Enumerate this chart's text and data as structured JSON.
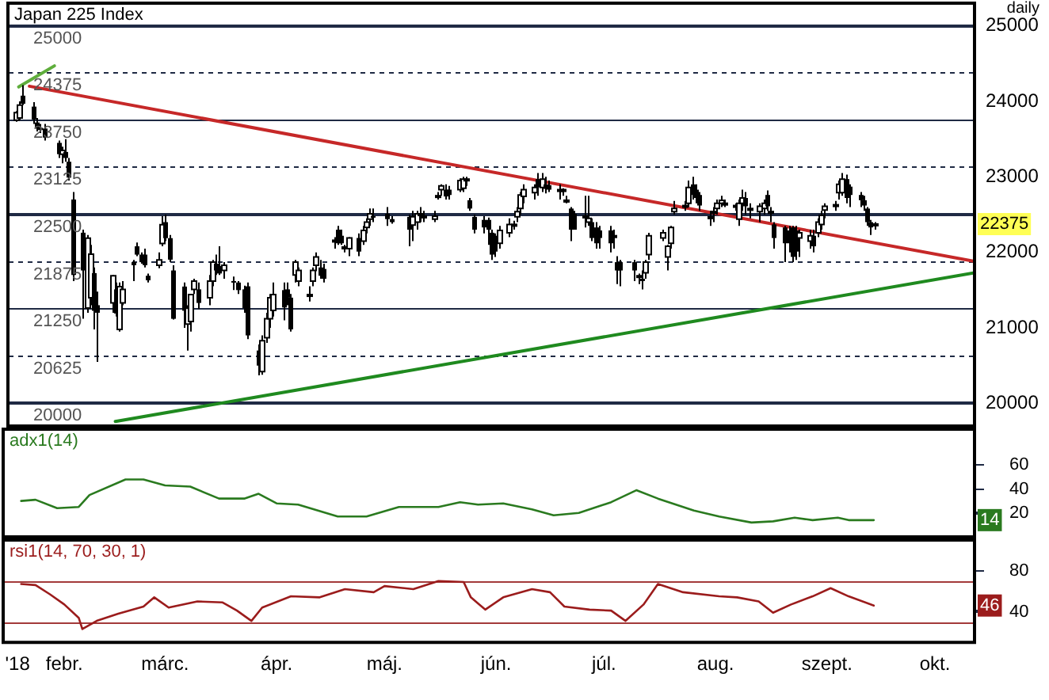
{
  "chart_data": [
    {
      "type": "candlestick",
      "title": "Japan 225 Index",
      "subtitle": "daily",
      "annotations": [
        "22375"
      ],
      "xlim": [
        "2018-01-15",
        "2018-10-12"
      ],
      "ylim": [
        19700,
        25300
      ],
      "yticks": [
        20000,
        20625,
        21250,
        21875,
        22500,
        23125,
        23750,
        24375,
        25000
      ],
      "y2lim": [
        19700,
        25300
      ],
      "y2ticks": [
        20000,
        21000,
        22000,
        23000,
        24000,
        25000
      ],
      "grid": "y",
      "tick_labels": "y",
      "x": [
        "2018-01-17",
        "2018-01-18",
        "2018-01-19",
        "2018-01-22",
        "2018-01-23",
        "2018-01-24",
        "2018-01-25",
        "2018-01-29",
        "2018-01-30",
        "2018-01-31",
        "2018-02-01",
        "2018-02-02",
        "2018-02-05",
        "2018-02-06",
        "2018-02-07",
        "2018-02-08",
        "2018-02-09",
        "2018-02-13",
        "2018-02-14",
        "2018-02-15",
        "2018-02-16",
        "2018-02-19",
        "2018-02-20",
        "2018-02-21",
        "2018-02-22",
        "2018-02-23",
        "2018-02-26",
        "2018-02-27",
        "2018-02-28",
        "2018-03-01",
        "2018-03-02",
        "2018-03-05",
        "2018-03-06",
        "2018-03-07",
        "2018-03-08",
        "2018-03-09",
        "2018-03-12",
        "2018-03-13",
        "2018-03-14",
        "2018-03-15",
        "2018-03-16",
        "2018-03-19",
        "2018-03-20",
        "2018-03-22",
        "2018-03-23",
        "2018-03-26",
        "2018-03-27",
        "2018-03-28",
        "2018-03-29",
        "2018-03-30",
        "2018-04-02",
        "2018-04-03",
        "2018-04-04",
        "2018-04-05",
        "2018-04-06",
        "2018-04-09",
        "2018-04-10",
        "2018-04-11",
        "2018-04-12",
        "2018-04-13",
        "2018-04-16",
        "2018-04-17",
        "2018-04-18",
        "2018-04-19",
        "2018-04-20",
        "2018-04-23",
        "2018-04-24",
        "2018-04-25",
        "2018-04-26",
        "2018-04-27",
        "2018-05-01",
        "2018-05-02",
        "2018-05-07",
        "2018-05-08",
        "2018-05-09",
        "2018-05-10",
        "2018-05-11",
        "2018-05-14",
        "2018-05-15",
        "2018-05-16",
        "2018-05-17",
        "2018-05-18",
        "2018-05-21",
        "2018-05-22",
        "2018-05-23",
        "2018-05-24",
        "2018-05-25",
        "2018-05-28",
        "2018-05-29",
        "2018-05-30",
        "2018-05-31",
        "2018-06-01",
        "2018-06-04",
        "2018-06-05",
        "2018-06-06",
        "2018-06-07",
        "2018-06-08",
        "2018-06-11",
        "2018-06-12",
        "2018-06-13",
        "2018-06-14",
        "2018-06-15",
        "2018-06-18",
        "2018-06-19",
        "2018-06-20",
        "2018-06-21",
        "2018-06-22",
        "2018-06-25",
        "2018-06-26",
        "2018-06-27",
        "2018-06-28",
        "2018-06-29",
        "2018-07-02",
        "2018-07-03",
        "2018-07-04",
        "2018-07-05",
        "2018-07-09",
        "2018-07-10",
        "2018-07-11",
        "2018-07-12",
        "2018-07-13",
        "2018-07-17",
        "2018-07-18",
        "2018-07-19",
        "2018-07-20",
        "2018-07-23",
        "2018-07-24",
        "2018-07-25",
        "2018-07-26",
        "2018-07-27",
        "2018-07-30",
        "2018-07-31",
        "2018-08-01",
        "2018-08-02",
        "2018-08-03",
        "2018-08-06",
        "2018-08-07",
        "2018-08-08",
        "2018-08-09",
        "2018-08-10",
        "2018-08-13",
        "2018-08-14",
        "2018-08-15",
        "2018-08-16",
        "2018-08-17",
        "2018-08-20",
        "2018-08-21",
        "2018-08-22",
        "2018-08-23",
        "2018-08-24",
        "2018-08-27",
        "2018-08-28",
        "2018-08-29",
        "2018-08-30",
        "2018-08-31",
        "2018-09-03",
        "2018-09-04",
        "2018-09-05",
        "2018-09-06",
        "2018-09-07",
        "2018-09-10",
        "2018-09-11",
        "2018-09-12",
        "2018-09-13",
        "2018-09-14"
      ],
      "ohlc": [
        [
          23750,
          23870,
          23730,
          23850
        ],
        [
          23780,
          24000,
          23750,
          23950
        ],
        [
          24075,
          24215,
          23950,
          23968
        ],
        [
          23930,
          23990,
          23700,
          23760
        ],
        [
          23720,
          23780,
          23600,
          23640
        ],
        [
          23650,
          23700,
          23580,
          23620
        ],
        [
          23640,
          23700,
          23480,
          23520
        ],
        [
          23450,
          23480,
          23250,
          23300
        ],
        [
          23300,
          23400,
          23180,
          23350
        ],
        [
          23330,
          23500,
          23200,
          23250
        ],
        [
          23200,
          23250,
          22950,
          22990
        ],
        [
          22700,
          22800,
          21620,
          21700
        ],
        [
          22260,
          22300,
          21120,
          21760
        ],
        [
          21262,
          22230,
          21200,
          22188
        ],
        [
          21400,
          22100,
          21300,
          21975
        ],
        [
          21725,
          21800,
          20980,
          21226
        ],
        [
          21300,
          21480,
          20550,
          21200
        ],
        [
          21330,
          21700,
          21200,
          21690
        ],
        [
          21510,
          21600,
          21150,
          21190
        ],
        [
          20980,
          21600,
          20950,
          21547
        ],
        [
          21330,
          21620,
          21300,
          21510
        ],
        [
          21870,
          21900,
          21620,
          21830
        ],
        [
          22080,
          22130,
          21950,
          21970
        ],
        [
          21970,
          22000,
          21850,
          21870
        ],
        [
          21970,
          22050,
          21800,
          21830
        ],
        [
          21690,
          21720,
          21600,
          21630
        ],
        [
          21830,
          22000,
          21790,
          21900
        ],
        [
          22117,
          22480,
          22080,
          22366
        ],
        [
          22400,
          22500,
          22150,
          22188
        ],
        [
          22188,
          22230,
          21870,
          21903
        ],
        [
          21760,
          21830,
          21110,
          21120
        ],
        [
          21547,
          21600,
          21000,
          21227
        ],
        [
          21050,
          21300,
          20700,
          21260
        ],
        [
          21085,
          21450,
          20950,
          21440
        ],
        [
          21510,
          21650,
          21450,
          21620
        ],
        [
          21510,
          21600,
          21250,
          21330
        ],
        [
          21400,
          21700,
          21300,
          21620
        ],
        [
          21620,
          21900,
          21550,
          21870
        ],
        [
          21850,
          21970,
          21700,
          21760
        ],
        [
          21820,
          22080,
          21700,
          21720
        ],
        [
          21760,
          21870,
          21650,
          21830
        ],
        [
          21620,
          21680,
          21500,
          21610
        ],
        [
          21600,
          21620,
          21450,
          21500
        ],
        [
          21510,
          21560,
          21200,
          21260
        ],
        [
          21550,
          21600,
          20850,
          20900
        ],
        [
          20700,
          20780,
          20370,
          20500
        ],
        [
          20420,
          20900,
          20380,
          20830
        ],
        [
          20870,
          21200,
          20800,
          21120
        ],
        [
          21120,
          21450,
          21000,
          21400
        ],
        [
          21230,
          21600,
          21150,
          21440
        ],
        [
          21500,
          21600,
          21100,
          21270
        ],
        [
          21510,
          21600,
          21300,
          21400
        ],
        [
          21400,
          21450,
          20950,
          20980
        ],
        [
          21700,
          21900,
          21600,
          21870
        ],
        [
          21620,
          21800,
          21550,
          21760
        ],
        [
          21430,
          21550,
          21350,
          21440
        ],
        [
          21620,
          21800,
          21550,
          21760
        ],
        [
          21830,
          22000,
          21750,
          21940
        ],
        [
          21800,
          21900,
          21650,
          21690
        ],
        [
          21780,
          21850,
          21600,
          21650
        ],
        [
          22150,
          22200,
          22050,
          22160
        ],
        [
          22300,
          22350,
          22100,
          22120
        ],
        [
          22220,
          22300,
          22100,
          22120
        ],
        [
          22060,
          22100,
          22000,
          22070
        ],
        [
          22050,
          22200,
          21950,
          22190
        ],
        [
          22190,
          22250,
          21950,
          22010
        ],
        [
          22150,
          22350,
          22100,
          22290
        ],
        [
          22330,
          22450,
          22250,
          22400
        ],
        [
          22440,
          22580,
          22350,
          22510
        ],
        [
          22480,
          22580,
          22400,
          22470
        ],
        [
          22510,
          22600,
          22350,
          22440
        ],
        [
          22440,
          22480,
          22380,
          22400
        ],
        [
          22470,
          22500,
          22080,
          22300
        ],
        [
          22360,
          22550,
          22150,
          22470
        ],
        [
          22400,
          22550,
          22300,
          22510
        ],
        [
          22510,
          22600,
          22400,
          22510
        ],
        [
          22470,
          22550,
          22400,
          22480
        ],
        [
          22440,
          22550,
          22400,
          22480
        ],
        [
          22740,
          22800,
          22700,
          22750
        ],
        [
          22830,
          22900,
          22750,
          22880
        ],
        [
          22830,
          22900,
          22700,
          22740
        ],
        [
          22830,
          22880,
          22700,
          22760
        ],
        [
          22830,
          22980,
          22800,
          22950
        ],
        [
          22850,
          23000,
          22800,
          22970
        ],
        [
          22960,
          23000,
          22880,
          22970
        ],
        [
          22690,
          22720,
          22550,
          22580
        ],
        [
          22470,
          22500,
          22250,
          22300
        ],
        [
          22430,
          22480,
          22250,
          22330
        ],
        [
          22430,
          22460,
          22100,
          22300
        ],
        [
          22260,
          22300,
          21900,
          21970
        ],
        [
          22220,
          22250,
          21940,
          22010
        ],
        [
          22120,
          22350,
          22050,
          22290
        ],
        [
          22260,
          22450,
          22200,
          22370
        ],
        [
          22360,
          22420,
          22300,
          22370
        ],
        [
          22470,
          22600,
          22400,
          22540
        ],
        [
          22580,
          22800,
          22500,
          22760
        ],
        [
          22740,
          22900,
          22650,
          22830
        ],
        [
          22790,
          22900,
          22700,
          22860
        ],
        [
          22970,
          23050,
          22750,
          22860
        ],
        [
          22860,
          23050,
          22800,
          22970
        ],
        [
          22900,
          23000,
          22780,
          22840
        ],
        [
          22890,
          22950,
          22800,
          22830
        ],
        [
          22830,
          22900,
          22700,
          22830
        ],
        [
          22830,
          22850,
          22750,
          22830
        ],
        [
          22690,
          22750,
          22650,
          22690
        ],
        [
          22580,
          22600,
          22150,
          22300
        ],
        [
          22510,
          22550,
          22300,
          22300
        ],
        [
          22470,
          22750,
          22330,
          22480
        ],
        [
          22400,
          22750,
          22350,
          22450
        ],
        [
          22400,
          22450,
          22150,
          22190
        ],
        [
          22330,
          22400,
          22050,
          22120
        ],
        [
          22290,
          22350,
          22050,
          22190
        ],
        [
          22290,
          22350,
          22000,
          22120
        ],
        [
          22220,
          22300,
          22050,
          22220
        ],
        [
          21870,
          21950,
          21580,
          21760
        ],
        [
          21870,
          21900,
          21550,
          21760
        ],
        [
          21870,
          21900,
          21620,
          21760
        ],
        [
          21690,
          21720,
          21580,
          21690
        ],
        [
          21650,
          21760,
          21510,
          21620
        ],
        [
          21730,
          21900,
          21650,
          21870
        ],
        [
          21970,
          22260,
          21900,
          22220
        ],
        [
          22190,
          22300,
          22150,
          22260
        ],
        [
          21940,
          22100,
          21760,
          22080
        ],
        [
          22120,
          22350,
          22050,
          22330
        ],
        [
          22540,
          22680,
          22500,
          22580
        ],
        [
          22610,
          22680,
          22550,
          22620
        ],
        [
          22650,
          22950,
          22600,
          22860
        ],
        [
          22900,
          23000,
          22700,
          22760
        ],
        [
          22830,
          22900,
          22650,
          22720
        ],
        [
          22760,
          22800,
          22550,
          22620
        ],
        [
          22470,
          22550,
          22350,
          22470
        ],
        [
          22540,
          22600,
          22400,
          22540
        ],
        [
          22580,
          22700,
          22500,
          22650
        ],
        [
          22650,
          22750,
          22600,
          22690
        ],
        [
          22650,
          22700,
          22600,
          22650
        ],
        [
          22620,
          22650,
          22550,
          22620
        ],
        [
          22440,
          22700,
          22350,
          22650
        ],
        [
          22650,
          22830,
          22550,
          22720
        ],
        [
          22720,
          22800,
          22500,
          22610
        ],
        [
          22580,
          22650,
          22450,
          22580
        ],
        [
          22540,
          22650,
          22400,
          22610
        ],
        [
          22580,
          22700,
          22500,
          22650
        ],
        [
          22760,
          22820,
          22550,
          22610
        ],
        [
          22540,
          22600,
          22400,
          22540
        ],
        [
          22370,
          22400,
          22050,
          22190
        ],
        [
          22330,
          22350,
          21870,
          22120
        ],
        [
          22290,
          22350,
          22000,
          22120
        ],
        [
          22330,
          22350,
          21870,
          21940
        ],
        [
          22290,
          22350,
          21900,
          22010
        ],
        [
          22190,
          22300,
          21940,
          22260
        ],
        [
          22150,
          22300,
          22050,
          22220
        ],
        [
          22220,
          22300,
          22000,
          22080
        ],
        [
          22260,
          22450,
          22200,
          22400
        ],
        [
          22370,
          22550,
          22300,
          22490
        ],
        [
          22560,
          22650,
          22450,
          22610
        ],
        [
          22630,
          22680,
          22550,
          22630
        ],
        [
          22790,
          22950,
          22700,
          22900
        ],
        [
          22790,
          23050,
          22750,
          22970
        ],
        [
          22970,
          23030,
          22650,
          22720
        ],
        [
          22870,
          22900,
          22600,
          22760
        ],
        [
          22760,
          22800,
          22600,
          22690
        ],
        [
          22690,
          22750,
          22550,
          22620
        ],
        [
          22580,
          22600,
          22350,
          22400
        ],
        [
          22400,
          22430,
          22230,
          22330
        ],
        [
          22370,
          22400,
          22300,
          22375
        ]
      ],
      "series": [
        {
          "type": "line",
          "color": "#c62828",
          "x": [
            "2018-01-21",
            "2018-10-12"
          ],
          "values": [
            24200,
            21880
          ]
        },
        {
          "type": "line",
          "color": "#1f8a1f",
          "x": [
            "2018-02-14",
            "2018-10-12"
          ],
          "values": [
            19760,
            21730
          ]
        },
        {
          "type": "line",
          "color": "#5fae3c",
          "x": [
            "2018-01-18",
            "2018-01-28"
          ],
          "values": [
            24190,
            24470
          ]
        }
      ]
    },
    {
      "type": "line",
      "title": "adx1(14)",
      "annotations": [
        "14"
      ],
      "xlim": [
        "2018-01-15",
        "2018-10-12"
      ],
      "ylim": [
        0,
        90
      ],
      "yticks": [
        20,
        40,
        60
      ],
      "tick_labels": "y",
      "series": [
        {
          "color": "#2a7a1f",
          "x": [
            "2018-01-20",
            "2018-01-24",
            "2018-01-30",
            "2018-02-05",
            "2018-02-08",
            "2018-02-18",
            "2018-02-23",
            "2018-03-01",
            "2018-03-08",
            "2018-03-16",
            "2018-03-23",
            "2018-03-27",
            "2018-04-01",
            "2018-04-07",
            "2018-04-18",
            "2018-04-26",
            "2018-05-05",
            "2018-05-16",
            "2018-05-22",
            "2018-05-27",
            "2018-06-03",
            "2018-06-11",
            "2018-06-17",
            "2018-06-24",
            "2018-07-03",
            "2018-07-10",
            "2018-07-16",
            "2018-07-26",
            "2018-08-02",
            "2018-08-11",
            "2018-08-17",
            "2018-08-23",
            "2018-08-28",
            "2018-09-04",
            "2018-09-07",
            "2018-09-14"
          ],
          "values": [
            30,
            31,
            24,
            25,
            35,
            48,
            48,
            43,
            42,
            32,
            32,
            36,
            28,
            27,
            17,
            17,
            25,
            25,
            29,
            27,
            28,
            23,
            18,
            20,
            29,
            39,
            32,
            22,
            17,
            12,
            13,
            16,
            14,
            16,
            14,
            14
          ]
        }
      ]
    },
    {
      "type": "line",
      "title": "rsi1(14, 70, 30, 1)",
      "annotations": [
        "46"
      ],
      "xlim": [
        "2018-01-15",
        "2018-10-12"
      ],
      "ylim": [
        10,
        110
      ],
      "yticks": [
        40,
        80
      ],
      "xticks": [
        {
          "value": "2018-01-19",
          "label": "'18"
        },
        {
          "value": "2018-02-01",
          "label": "febr."
        },
        {
          "value": "2018-03-01",
          "label": "márc."
        },
        {
          "value": "2018-04-01",
          "label": "ápr."
        },
        {
          "value": "2018-05-01",
          "label": "máj."
        },
        {
          "value": "2018-06-01",
          "label": "jún."
        },
        {
          "value": "2018-07-01",
          "label": "júl."
        },
        {
          "value": "2018-08-01",
          "label": "aug."
        },
        {
          "value": "2018-09-01",
          "label": "szept."
        },
        {
          "value": "2018-10-01",
          "label": "okt."
        }
      ],
      "ref_lines": [
        {
          "axis": "y",
          "value": 70,
          "color": "#a33a3a"
        },
        {
          "axis": "y",
          "value": 30,
          "color": "#a33a3a"
        }
      ],
      "series": [
        {
          "color": "#9b1c1c",
          "x": [
            "2018-01-20",
            "2018-01-24",
            "2018-01-28",
            "2018-02-01",
            "2018-02-05",
            "2018-02-06",
            "2018-02-10",
            "2018-02-16",
            "2018-02-23",
            "2018-02-26",
            "2018-03-02",
            "2018-03-10",
            "2018-03-17",
            "2018-03-21",
            "2018-03-25",
            "2018-03-28",
            "2018-04-05",
            "2018-04-13",
            "2018-04-20",
            "2018-04-28",
            "2018-05-01",
            "2018-05-09",
            "2018-05-16",
            "2018-05-23",
            "2018-05-25",
            "2018-05-29",
            "2018-06-03",
            "2018-06-11",
            "2018-06-16",
            "2018-06-20",
            "2018-06-27",
            "2018-07-03",
            "2018-07-07",
            "2018-07-12",
            "2018-07-16",
            "2018-07-23",
            "2018-08-02",
            "2018-08-07",
            "2018-08-13",
            "2018-08-17",
            "2018-08-22",
            "2018-08-28",
            "2018-09-02",
            "2018-09-07",
            "2018-09-14"
          ],
          "values": [
            67,
            66,
            57,
            47,
            34,
            23,
            31,
            38,
            45,
            54,
            44,
            50,
            49,
            41,
            31,
            44,
            55,
            54,
            62,
            59,
            65,
            62,
            70,
            69,
            54,
            42,
            54,
            62,
            59,
            45,
            42,
            41,
            31,
            47,
            67,
            59,
            55,
            54,
            50,
            39,
            47,
            55,
            63,
            55,
            46
          ]
        }
      ]
    }
  ]
}
